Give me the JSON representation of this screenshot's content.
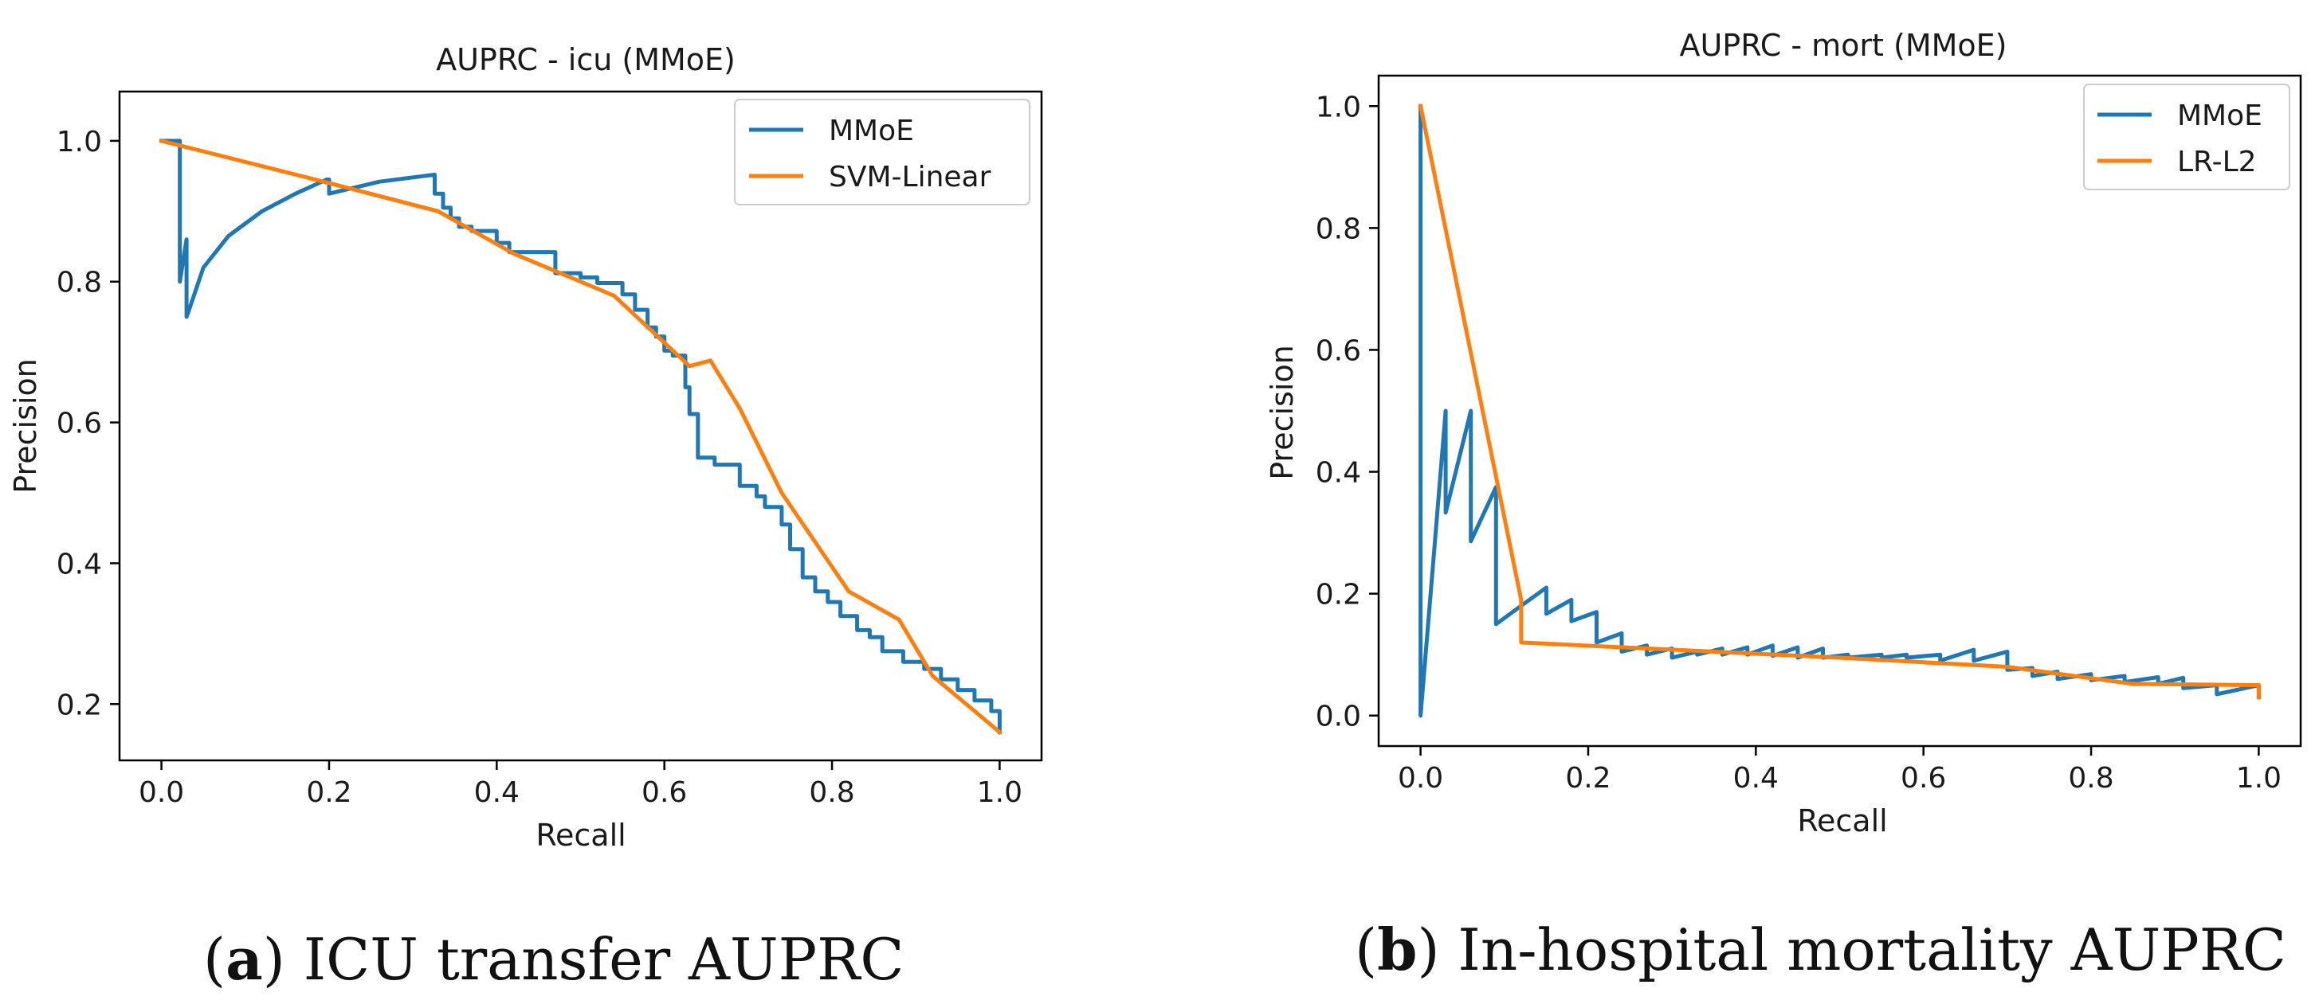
{
  "colors": {
    "mmoe": "#1f77b4",
    "baseline": "#ff7f0e",
    "axis": "#000000",
    "text": "#1a1a1a"
  },
  "captions": [
    {
      "letter": "a",
      "text": "ICU transfer AUPRC"
    },
    {
      "letter": "b",
      "text": "In-hospital mortality AUPRC"
    }
  ],
  "chart_data": [
    {
      "type": "line",
      "title": "AUPRC - icu (MMoE)",
      "xlabel": "Recall",
      "ylabel": "Precision",
      "xlim": [
        -0.05,
        1.05
      ],
      "ylim": [
        0.12,
        1.07
      ],
      "xticks": [
        0.0,
        0.2,
        0.4,
        0.6,
        0.8,
        1.0
      ],
      "xtick_labels": [
        "0.0",
        "0.2",
        "0.4",
        "0.6",
        "0.8",
        "1.0"
      ],
      "yticks": [
        0.2,
        0.4,
        0.6,
        0.8,
        1.0
      ],
      "ytick_labels": [
        "0.2",
        "0.4",
        "0.6",
        "0.8",
        "1.0"
      ],
      "legend": "top-right",
      "series": [
        {
          "name": "MMoE",
          "x": [
            0,
            0.022,
            0.022,
            0.03,
            0.03,
            0.033,
            0.05,
            0.08,
            0.12,
            0.16,
            0.197,
            0.2,
            0.2,
            0.26,
            0.326,
            0.326,
            0.336,
            0.336,
            0.345,
            0.345,
            0.355,
            0.355,
            0.37,
            0.37,
            0.4,
            0.4,
            0.415,
            0.415,
            0.47,
            0.47,
            0.5,
            0.5,
            0.52,
            0.52,
            0.55,
            0.55,
            0.565,
            0.565,
            0.58,
            0.58,
            0.59,
            0.59,
            0.6,
            0.6,
            0.61,
            0.61,
            0.625,
            0.625,
            0.63,
            0.63,
            0.64,
            0.64,
            0.66,
            0.66,
            0.69,
            0.69,
            0.71,
            0.71,
            0.72,
            0.72,
            0.74,
            0.74,
            0.75,
            0.75,
            0.765,
            0.765,
            0.78,
            0.78,
            0.795,
            0.795,
            0.81,
            0.81,
            0.83,
            0.83,
            0.845,
            0.845,
            0.86,
            0.86,
            0.885,
            0.885,
            0.91,
            0.91,
            0.93,
            0.93,
            0.95,
            0.95,
            0.97,
            0.97,
            0.99,
            0.99,
            1.0,
            1.0
          ],
          "y": [
            1.0,
            1.0,
            0.8,
            0.86,
            0.75,
            0.76,
            0.82,
            0.865,
            0.9,
            0.925,
            0.945,
            0.945,
            0.925,
            0.942,
            0.952,
            0.925,
            0.925,
            0.905,
            0.905,
            0.89,
            0.89,
            0.878,
            0.878,
            0.872,
            0.872,
            0.855,
            0.855,
            0.842,
            0.842,
            0.812,
            0.812,
            0.806,
            0.806,
            0.798,
            0.798,
            0.782,
            0.782,
            0.76,
            0.76,
            0.735,
            0.735,
            0.722,
            0.722,
            0.702,
            0.702,
            0.695,
            0.695,
            0.65,
            0.65,
            0.612,
            0.612,
            0.55,
            0.55,
            0.54,
            0.54,
            0.51,
            0.51,
            0.495,
            0.495,
            0.48,
            0.48,
            0.455,
            0.455,
            0.42,
            0.42,
            0.38,
            0.38,
            0.36,
            0.36,
            0.345,
            0.345,
            0.325,
            0.325,
            0.305,
            0.305,
            0.295,
            0.295,
            0.275,
            0.275,
            0.26,
            0.26,
            0.25,
            0.25,
            0.235,
            0.235,
            0.22,
            0.22,
            0.205,
            0.205,
            0.19,
            0.19,
            0.16
          ]
        },
        {
          "name": "SVM-Linear",
          "x": [
            0,
            0.2,
            0.33,
            0.42,
            0.54,
            0.63,
            0.655,
            0.69,
            0.74,
            0.82,
            0.88,
            0.92,
            0.97,
            1.0
          ],
          "y": [
            1.0,
            0.94,
            0.9,
            0.84,
            0.78,
            0.68,
            0.688,
            0.62,
            0.5,
            0.36,
            0.32,
            0.24,
            0.19,
            0.16
          ]
        }
      ]
    },
    {
      "type": "line",
      "title": "AUPRC - mort (MMoE)",
      "xlabel": "Recall",
      "ylabel": "Precision",
      "xlim": [
        -0.05,
        1.05
      ],
      "ylim": [
        -0.05,
        1.05
      ],
      "xticks": [
        0.0,
        0.2,
        0.4,
        0.6,
        0.8,
        1.0
      ],
      "xtick_labels": [
        "0.0",
        "0.2",
        "0.4",
        "0.6",
        "0.8",
        "1.0"
      ],
      "yticks": [
        0.0,
        0.2,
        0.4,
        0.6,
        0.8,
        1.0
      ],
      "ytick_labels": [
        "0.0",
        "0.2",
        "0.4",
        "0.6",
        "0.8",
        "1.0"
      ],
      "legend": "top-right",
      "series": [
        {
          "name": "MMoE",
          "x": [
            0,
            0,
            0,
            0.015,
            0.03,
            0.03,
            0.06,
            0.06,
            0.09,
            0.09,
            0.12,
            0.15,
            0.15,
            0.18,
            0.18,
            0.21,
            0.21,
            0.24,
            0.24,
            0.27,
            0.27,
            0.3,
            0.3,
            0.33,
            0.33,
            0.36,
            0.36,
            0.39,
            0.39,
            0.42,
            0.42,
            0.45,
            0.45,
            0.48,
            0.48,
            0.51,
            0.51,
            0.55,
            0.55,
            0.58,
            0.58,
            0.62,
            0.62,
            0.66,
            0.66,
            0.7,
            0.7,
            0.73,
            0.73,
            0.76,
            0.76,
            0.8,
            0.8,
            0.84,
            0.84,
            0.88,
            0.88,
            0.91,
            0.91,
            0.95,
            0.95,
            1.0,
            1.0
          ],
          "y": [
            1.0,
            0.0,
            0.0,
            0.25,
            0.5,
            0.333,
            0.5,
            0.286,
            0.375,
            0.15,
            0.18,
            0.21,
            0.167,
            0.19,
            0.155,
            0.17,
            0.12,
            0.135,
            0.105,
            0.115,
            0.1,
            0.11,
            0.095,
            0.105,
            0.1,
            0.11,
            0.1,
            0.112,
            0.1,
            0.115,
            0.098,
            0.112,
            0.095,
            0.11,
            0.095,
            0.1,
            0.095,
            0.1,
            0.095,
            0.1,
            0.095,
            0.1,
            0.09,
            0.108,
            0.09,
            0.105,
            0.075,
            0.078,
            0.065,
            0.072,
            0.06,
            0.068,
            0.058,
            0.065,
            0.055,
            0.063,
            0.052,
            0.062,
            0.045,
            0.05,
            0.035,
            0.05,
            0.03
          ]
        },
        {
          "name": "LR-L2",
          "x": [
            0,
            0.12,
            0.12,
            0.5,
            0.7,
            0.85,
            1.0,
            1.0
          ],
          "y": [
            1.0,
            0.19,
            0.12,
            0.095,
            0.08,
            0.052,
            0.05,
            0.03
          ]
        }
      ]
    }
  ]
}
